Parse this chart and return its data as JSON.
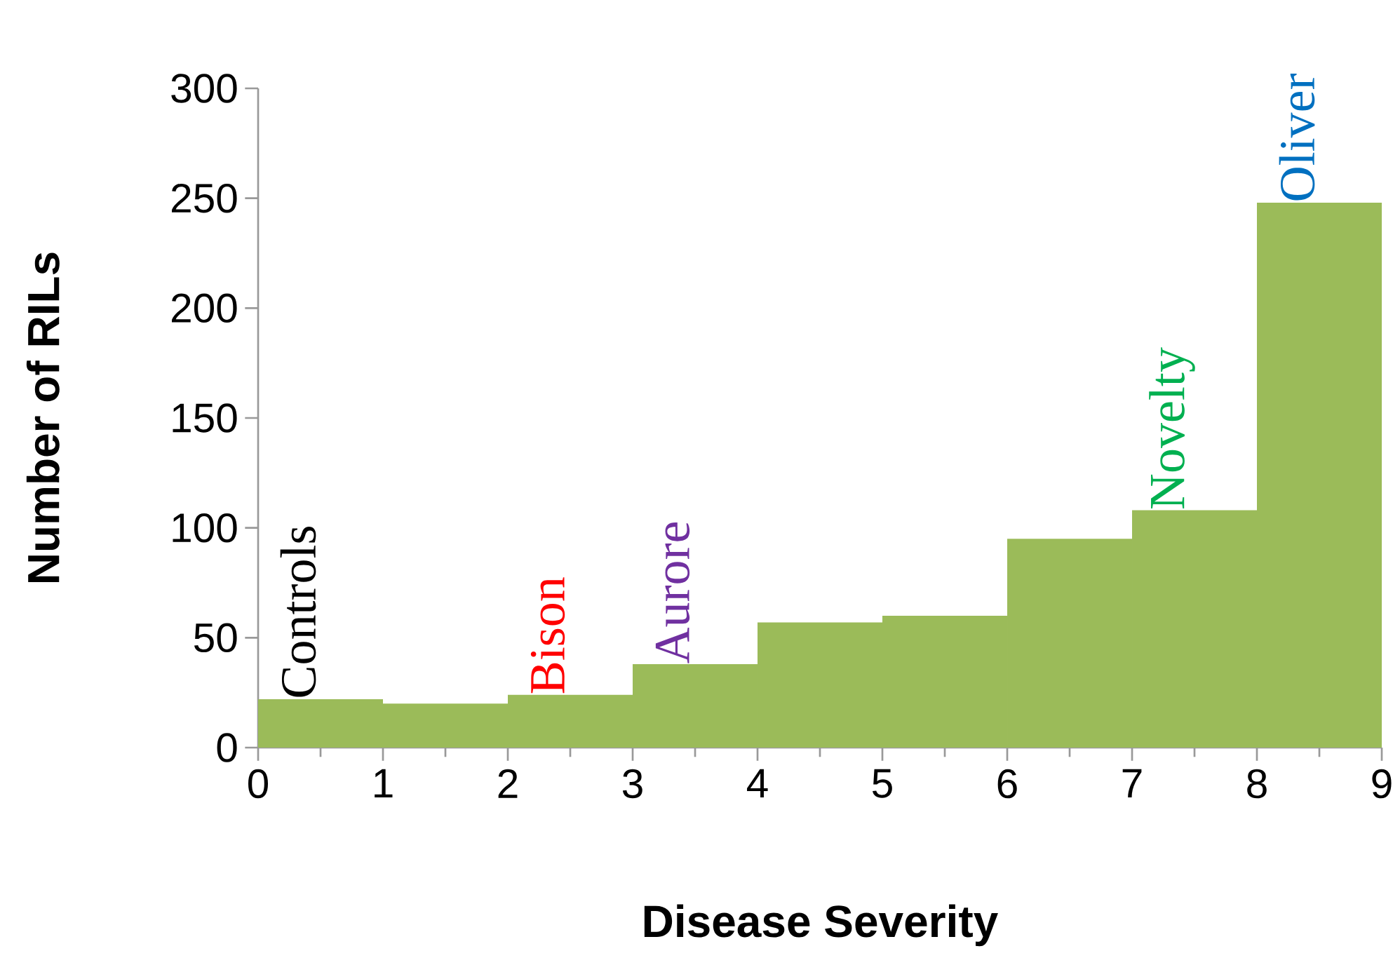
{
  "chart_data": {
    "type": "histogram",
    "xlabel": "Disease Severity",
    "ylabel": "Number of RILs",
    "bins": [
      0,
      1,
      2,
      3,
      4,
      5,
      6,
      7,
      8,
      9
    ],
    "values": [
      22,
      20,
      24,
      38,
      57,
      60,
      95,
      108,
      248
    ],
    "color": "#9bbb59",
    "xlim": [
      0,
      9
    ],
    "xticks": [
      0,
      1,
      2,
      3,
      4,
      5,
      6,
      7,
      8,
      9
    ],
    "ylim": [
      0,
      300
    ],
    "yticks": [
      0,
      50,
      100,
      150,
      200,
      250,
      300
    ],
    "annotations": [
      {
        "text": "Controls",
        "x": 0.5,
        "y": 22
      },
      {
        "text": "Bison",
        "x": 2.5,
        "y": 24
      },
      {
        "text": "Aurore",
        "x": 3.5,
        "y": 38
      },
      {
        "text": "Novelty",
        "x": 7.5,
        "y": 108
      },
      {
        "text": "Oliver",
        "x": 8.5,
        "y": 248
      }
    ]
  }
}
